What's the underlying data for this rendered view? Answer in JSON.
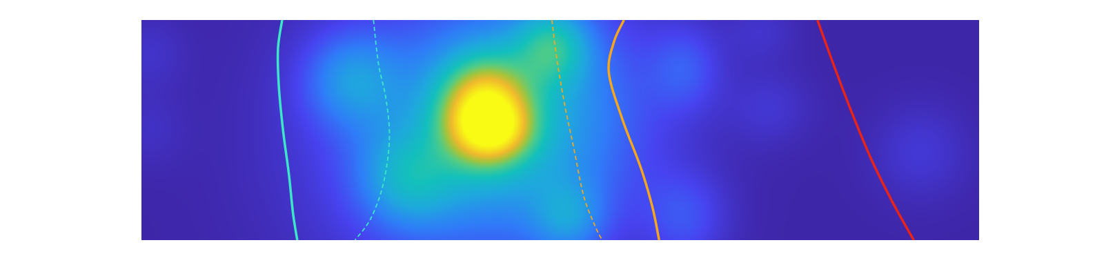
{
  "chart_data": {
    "type": "heatmap",
    "title": "",
    "xlabel": "",
    "ylabel": "",
    "colormap": "parula",
    "colormap_stops": [
      "#3e26a8",
      "#4743f0",
      "#2f7df8",
      "#1fa8de",
      "#13c0bc",
      "#4fcc88",
      "#a6c43b",
      "#f0b92d",
      "#f5dc20",
      "#f9fb15"
    ],
    "background_value": 0.0,
    "grid": false,
    "legend": "none",
    "xlim": [
      0,
      1
    ],
    "ylim": [
      0,
      1
    ],
    "density_blobs": [
      {
        "x": 0.41,
        "y": 0.58,
        "sx": 0.035,
        "sy": 0.15,
        "amp": 0.72
      },
      {
        "x": 0.42,
        "y": 0.5,
        "sx": 0.03,
        "sy": 0.09,
        "amp": 0.28
      },
      {
        "x": 0.47,
        "y": 0.58,
        "sx": 0.1,
        "sy": 0.4,
        "amp": 0.25
      },
      {
        "x": 0.36,
        "y": 0.45,
        "sx": 0.12,
        "sy": 0.45,
        "amp": 0.18
      },
      {
        "x": 0.25,
        "y": 0.73,
        "sx": 0.04,
        "sy": 0.15,
        "amp": 0.2
      },
      {
        "x": 0.32,
        "y": 0.28,
        "sx": 0.04,
        "sy": 0.15,
        "amp": 0.22
      },
      {
        "x": 0.49,
        "y": 0.88,
        "sx": 0.03,
        "sy": 0.12,
        "amp": 0.28
      },
      {
        "x": 0.51,
        "y": 0.1,
        "sx": 0.03,
        "sy": 0.12,
        "amp": 0.17
      },
      {
        "x": 0.65,
        "y": 0.78,
        "sx": 0.03,
        "sy": 0.14,
        "amp": 0.12
      },
      {
        "x": 0.65,
        "y": 0.1,
        "sx": 0.035,
        "sy": 0.15,
        "amp": 0.12
      },
      {
        "x": 0.75,
        "y": 0.6,
        "sx": 0.035,
        "sy": 0.12,
        "amp": 0.06
      },
      {
        "x": 0.93,
        "y": 0.4,
        "sx": 0.04,
        "sy": 0.15,
        "amp": 0.07
      },
      {
        "x": 0.74,
        "y": 0.95,
        "sx": 0.03,
        "sy": 0.1,
        "amp": 0.05
      },
      {
        "x": 0.01,
        "y": 0.85,
        "sx": 0.03,
        "sy": 0.12,
        "amp": 0.05
      },
      {
        "x": 0.01,
        "y": 0.5,
        "sx": 0.03,
        "sy": 0.12,
        "amp": 0.04
      }
    ],
    "series": [
      {
        "color": "#3ee6c8",
        "style": "solid",
        "width": 3.5,
        "points": [
          [
            0.168,
            1.0
          ],
          [
            0.163,
            0.87
          ],
          [
            0.164,
            0.7
          ],
          [
            0.169,
            0.5
          ],
          [
            0.176,
            0.3
          ],
          [
            0.181,
            0.12
          ],
          [
            0.186,
            0.0
          ]
        ]
      },
      {
        "color": "#3ee6c8",
        "style": "dashed",
        "width": 1.8,
        "points": [
          [
            0.277,
            1.0
          ],
          [
            0.283,
            0.8
          ],
          [
            0.292,
            0.64
          ],
          [
            0.296,
            0.46
          ],
          [
            0.289,
            0.26
          ],
          [
            0.274,
            0.1
          ],
          [
            0.255,
            0.0
          ]
        ]
      },
      {
        "color": "#f5a51e",
        "style": "dashed",
        "width": 1.8,
        "points": [
          [
            0.49,
            1.0
          ],
          [
            0.496,
            0.82
          ],
          [
            0.505,
            0.62
          ],
          [
            0.516,
            0.42
          ],
          [
            0.528,
            0.2
          ],
          [
            0.542,
            0.06
          ],
          [
            0.55,
            0.0
          ]
        ]
      },
      {
        "color": "#f5a51e",
        "style": "solid",
        "width": 3.5,
        "points": [
          [
            0.576,
            1.0
          ],
          [
            0.564,
            0.9
          ],
          [
            0.558,
            0.76
          ],
          [
            0.574,
            0.55
          ],
          [
            0.596,
            0.33
          ],
          [
            0.61,
            0.15
          ],
          [
            0.618,
            0.0
          ]
        ]
      },
      {
        "color": "#e82418",
        "style": "solid",
        "width": 3.5,
        "points": [
          [
            0.807,
            1.0
          ],
          [
            0.826,
            0.8
          ],
          [
            0.848,
            0.58
          ],
          [
            0.871,
            0.37
          ],
          [
            0.897,
            0.17
          ],
          [
            0.922,
            0.0
          ]
        ]
      }
    ]
  }
}
